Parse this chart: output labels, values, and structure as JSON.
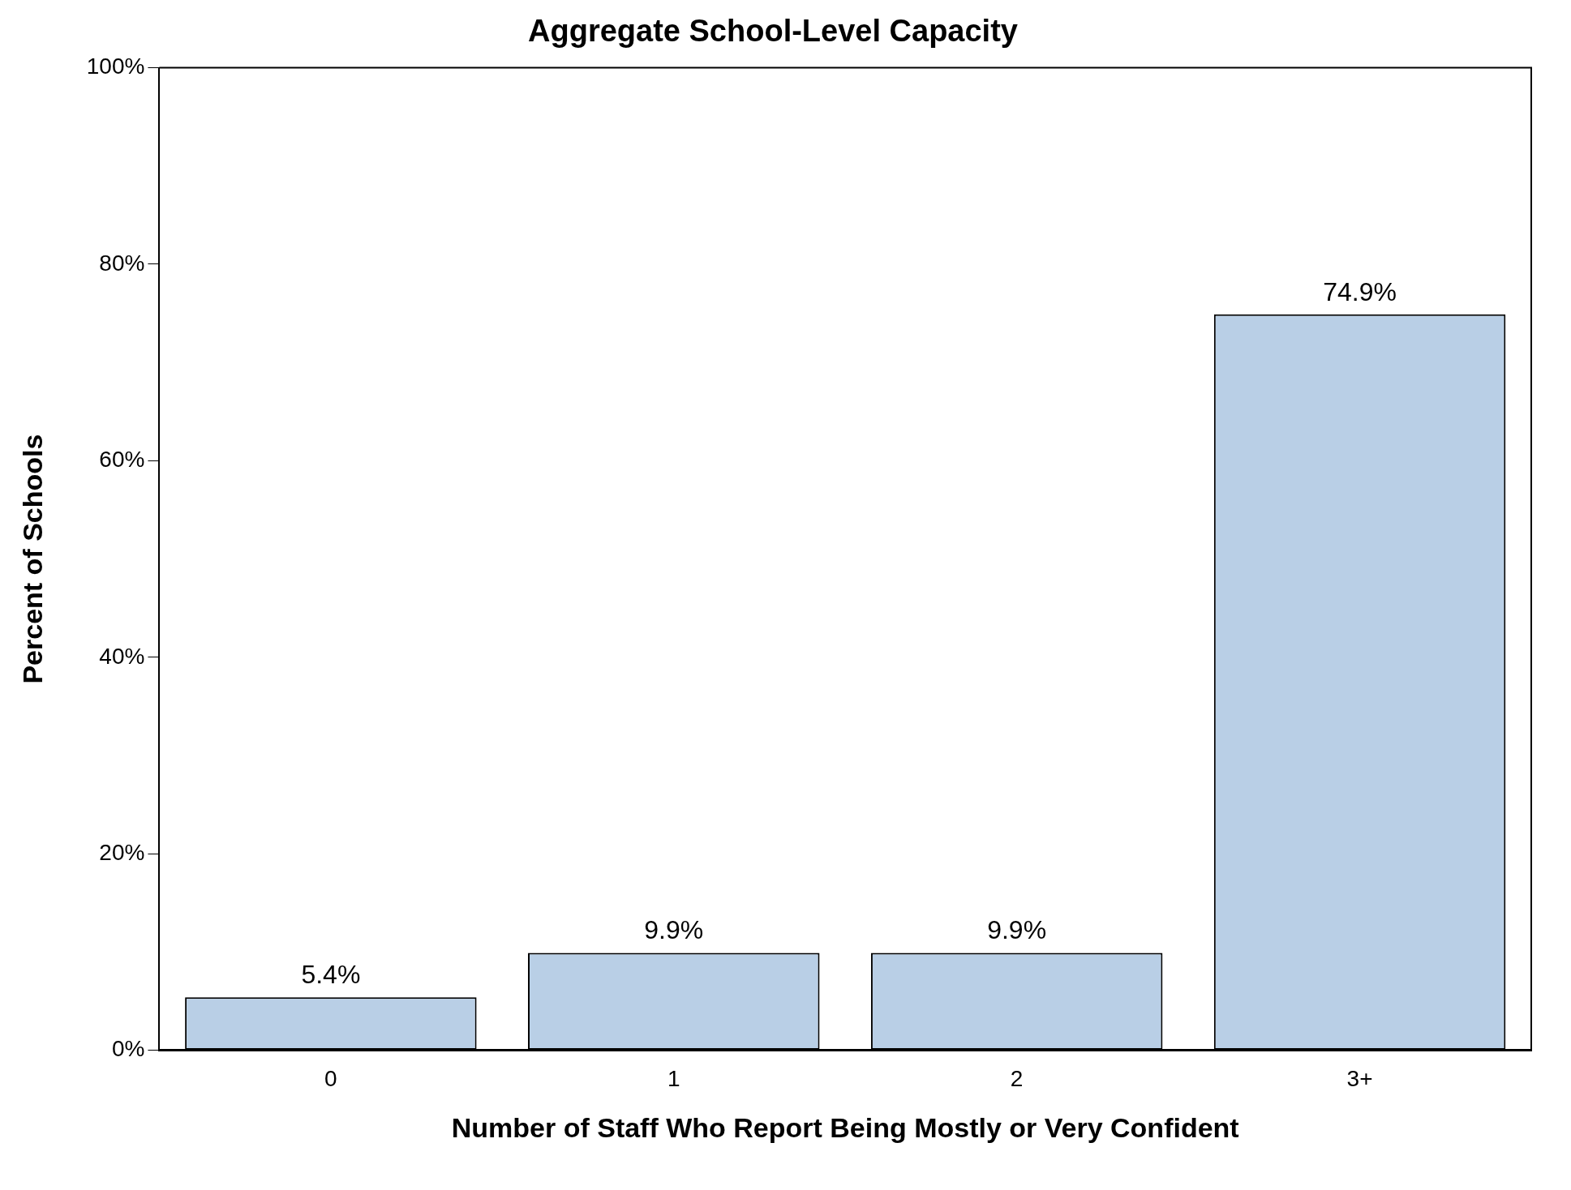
{
  "chart_data": {
    "type": "bar",
    "title": "Aggregate School-Level Capacity",
    "xlabel": "Number of Staff Who Report Being Mostly or Very Confident",
    "ylabel": "Percent of Schools",
    "categories": [
      "0",
      "1",
      "2",
      "3+"
    ],
    "values": [
      5.4,
      9.9,
      9.9,
      74.9
    ],
    "value_labels": [
      "5.4%",
      "9.9%",
      "9.9%",
      "74.9%"
    ],
    "color": "#b9cfe6",
    "ylim": [
      0,
      100
    ],
    "yticks": [
      {
        "value": 0,
        "label": "0%"
      },
      {
        "value": 20,
        "label": "20%"
      },
      {
        "value": 40,
        "label": "40%"
      },
      {
        "value": 60,
        "label": "60%"
      },
      {
        "value": 80,
        "label": "80%"
      },
      {
        "value": 100,
        "label": "100%"
      }
    ],
    "grid": false,
    "legend": false
  }
}
